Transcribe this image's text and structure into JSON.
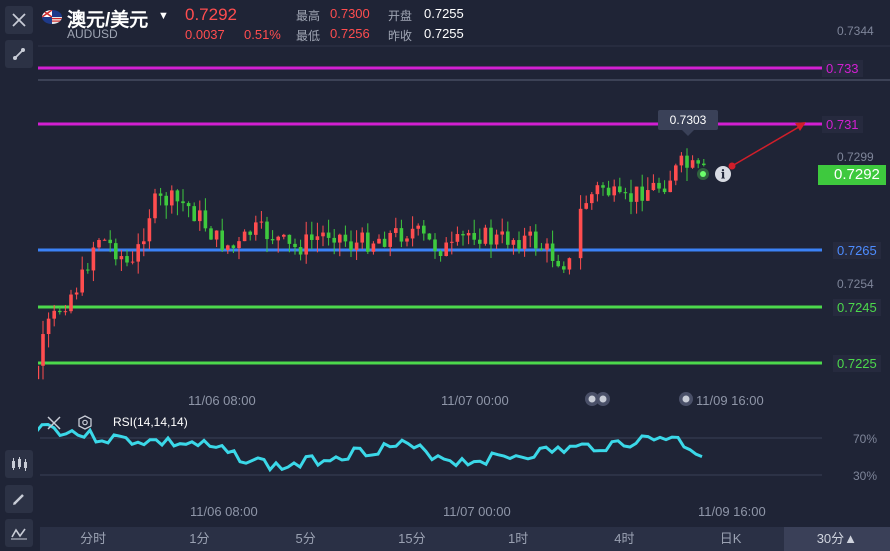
{
  "header": {
    "pair_name": "澳元/美元",
    "pair_code": "AUDUSD",
    "price": "0.7292",
    "change": "0.0037",
    "change_pct": "0.51%",
    "high_label": "最高",
    "high_value": "0.7300",
    "low_label": "最低",
    "low_value": "0.7256",
    "open_label": "开盘",
    "open_value": "0.7255",
    "prev_close_label": "昨收",
    "prev_close_value": "0.7255"
  },
  "price_axis": {
    "ticks": [
      "0.7344",
      "0.7299",
      "0.7254"
    ],
    "levels": [
      {
        "label": "0.733",
        "color": "#d21fd2"
      },
      {
        "label": "0.731",
        "color": "#d21fd2"
      },
      {
        "label": "0.7265",
        "color": "#3b82f6"
      },
      {
        "label": "0.7245",
        "color": "#4cd94c"
      },
      {
        "label": "0.7225",
        "color": "#4cd94c"
      }
    ],
    "current": "0.7292",
    "tooltip": "0.7303"
  },
  "time_axis": {
    "labels": [
      "11/06 08:00",
      "11/07 00:00",
      "11/09 16:00"
    ]
  },
  "rsi": {
    "label": "RSI(14,14,14)",
    "levels": [
      "70%",
      "30%"
    ]
  },
  "timeframes": [
    "分时",
    "1分",
    "5分",
    "15分",
    "1时",
    "4时",
    "日K",
    "30分▲"
  ],
  "active_timeframe": "30分▲",
  "colors": {
    "up": "#ff4d4f",
    "down": "#3ec93e",
    "rsi": "#3bd8e8"
  }
}
